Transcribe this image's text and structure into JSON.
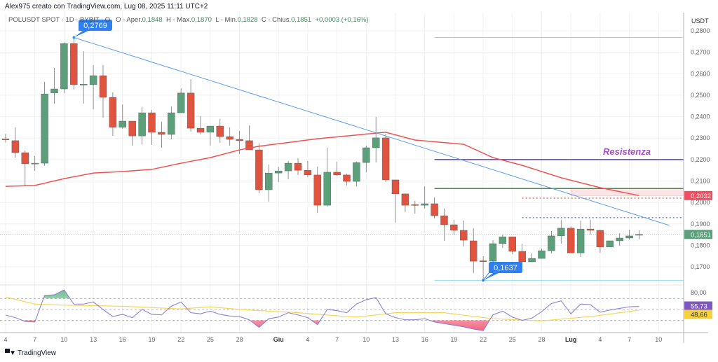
{
  "header": {
    "attribution": "Alex975 creato con TradingView.com, Lug 08, 2025 11:11 UTC+2"
  },
  "legend": {
    "symbol": "POLUSDT SPOT · 1D · BYBIT",
    "open_label": "O - Aper.",
    "open": "0,1848",
    "high_label": "H - Max.",
    "high": "0,1870",
    "low_label": "L - Min.",
    "low": "0,1828",
    "close_label": "C - Chius.",
    "close": "0,1851",
    "change": "+0,0003 (+0,16%)"
  },
  "footer": {
    "brand": "TradingView"
  },
  "colors": {
    "up": "#5b9f7b",
    "down": "#e0533f",
    "ma": "#ef5350",
    "trend": "#5b9cf0",
    "rsi": "#8f7fd6",
    "rsi_ma": "#f5d55a",
    "resistance": "#5c3fc4",
    "support_green": "#3d9140",
    "cyan": "#8fdde6"
  },
  "chart_data": {
    "type": "candlestick",
    "currency": "USDT",
    "ylim": [
      0.159,
      0.283
    ],
    "price_ticks": [
      "0,2800",
      "0,2700",
      "0,2600",
      "0,2500",
      "0,2400",
      "0,2300",
      "0,2200",
      "0,2100",
      "0,2000",
      "0,1900",
      "0,1800",
      "0,1700"
    ],
    "price_tick_values": [
      0.28,
      0.27,
      0.26,
      0.25,
      0.24,
      0.23,
      0.22,
      0.21,
      0.2,
      0.19,
      0.18,
      0.17
    ],
    "x_ticks": [
      {
        "i": 0,
        "label": "4"
      },
      {
        "i": 3,
        "label": "7"
      },
      {
        "i": 6,
        "label": "10"
      },
      {
        "i": 9,
        "label": "13"
      },
      {
        "i": 12,
        "label": "16"
      },
      {
        "i": 15,
        "label": "19"
      },
      {
        "i": 18,
        "label": "22"
      },
      {
        "i": 21,
        "label": "25"
      },
      {
        "i": 24,
        "label": "28"
      },
      {
        "i": 28,
        "label": "Giu",
        "bold": true
      },
      {
        "i": 31,
        "label": "4"
      },
      {
        "i": 34,
        "label": "7"
      },
      {
        "i": 37,
        "label": "10"
      },
      {
        "i": 40,
        "label": "13"
      },
      {
        "i": 43,
        "label": "16"
      },
      {
        "i": 46,
        "label": "19"
      },
      {
        "i": 49,
        "label": "22"
      },
      {
        "i": 52,
        "label": "25"
      },
      {
        "i": 55,
        "label": "28"
      },
      {
        "i": 58,
        "label": "Lug",
        "bold": true
      },
      {
        "i": 61,
        "label": "4"
      },
      {
        "i": 64,
        "label": "7"
      },
      {
        "i": 67,
        "label": "10"
      }
    ],
    "ohlc": [
      [
        0.2296,
        0.232,
        0.228,
        0.2292
      ],
      [
        0.2288,
        0.235,
        0.2209,
        0.2232
      ],
      [
        0.2232,
        0.2242,
        0.2079,
        0.218
      ],
      [
        0.218,
        0.2216,
        0.2147,
        0.2183
      ],
      [
        0.2183,
        0.2562,
        0.217,
        0.2506
      ],
      [
        0.251,
        0.2627,
        0.2461,
        0.2529
      ],
      [
        0.2529,
        0.2745,
        0.251,
        0.2741
      ],
      [
        0.2741,
        0.2769,
        0.2526,
        0.2549
      ],
      [
        0.2549,
        0.2705,
        0.2461,
        0.2551
      ],
      [
        0.2549,
        0.264,
        0.2434,
        0.2591
      ],
      [
        0.2591,
        0.264,
        0.2395,
        0.249
      ],
      [
        0.249,
        0.2513,
        0.231,
        0.235
      ],
      [
        0.235,
        0.2457,
        0.2343,
        0.2379
      ],
      [
        0.2379,
        0.2379,
        0.2265,
        0.231
      ],
      [
        0.231,
        0.2444,
        0.2271,
        0.2418
      ],
      [
        0.2418,
        0.2431,
        0.2268,
        0.2327
      ],
      [
        0.2327,
        0.2376,
        0.2255,
        0.2317
      ],
      [
        0.2317,
        0.2447,
        0.2294,
        0.2418
      ],
      [
        0.2418,
        0.2532,
        0.2418,
        0.251
      ],
      [
        0.251,
        0.2575,
        0.233,
        0.2346
      ],
      [
        0.2346,
        0.2402,
        0.2317,
        0.2327
      ],
      [
        0.2327,
        0.2356,
        0.2265,
        0.2356
      ],
      [
        0.2356,
        0.2389,
        0.2278,
        0.2307
      ],
      [
        0.2307,
        0.235,
        0.2265,
        0.2294
      ],
      [
        0.2294,
        0.2333,
        0.2226,
        0.2288
      ],
      [
        0.2288,
        0.2359,
        0.2245,
        0.2245
      ],
      [
        0.2245,
        0.2275,
        0.2043,
        0.2059
      ],
      [
        0.2059,
        0.2177,
        0.2004,
        0.2137
      ],
      [
        0.2137,
        0.2164,
        0.2095,
        0.2147
      ],
      [
        0.2147,
        0.2193,
        0.2108,
        0.2183
      ],
      [
        0.2183,
        0.2206,
        0.2128,
        0.215
      ],
      [
        0.215,
        0.2193,
        0.2118,
        0.2128
      ],
      [
        0.2128,
        0.2167,
        0.1951,
        0.1987
      ],
      [
        0.1987,
        0.2255,
        0.1981,
        0.2141
      ],
      [
        0.2141,
        0.219,
        0.2124,
        0.2128
      ],
      [
        0.2128,
        0.2134,
        0.2079,
        0.2098
      ],
      [
        0.2098,
        0.219,
        0.2075,
        0.2186
      ],
      [
        0.2186,
        0.2265,
        0.2141,
        0.2255
      ],
      [
        0.2255,
        0.2399,
        0.2186,
        0.2301
      ],
      [
        0.2301,
        0.232,
        0.2095,
        0.2105
      ],
      [
        0.2105,
        0.2105,
        0.1906,
        0.204
      ],
      [
        0.204,
        0.204,
        0.1955,
        0.1987
      ],
      [
        0.199,
        0.2007,
        0.1948,
        0.1987
      ],
      [
        0.1987,
        0.2075,
        0.1971,
        0.1994
      ],
      [
        0.1994,
        0.2023,
        0.1925,
        0.1938
      ],
      [
        0.1938,
        0.1971,
        0.1821,
        0.1896
      ],
      [
        0.1896,
        0.1919,
        0.185,
        0.187
      ],
      [
        0.187,
        0.1915,
        0.1795,
        0.1824
      ],
      [
        0.1821,
        0.188,
        0.1671,
        0.1726
      ],
      [
        0.1728,
        0.1749,
        0.1637,
        0.1726
      ],
      [
        0.1726,
        0.1824,
        0.1723,
        0.1808
      ],
      [
        0.1808,
        0.185,
        0.1788,
        0.184
      ],
      [
        0.184,
        0.184,
        0.1759,
        0.1772
      ],
      [
        0.1772,
        0.1808,
        0.171,
        0.1723
      ],
      [
        0.1723,
        0.1762,
        0.1723,
        0.1739
      ],
      [
        0.1739,
        0.1785,
        0.1739,
        0.1775
      ],
      [
        0.1775,
        0.1867,
        0.1762,
        0.1844
      ],
      [
        0.1844,
        0.1919,
        0.1808,
        0.188
      ],
      [
        0.188,
        0.1889,
        0.1765,
        0.1765
      ],
      [
        0.1765,
        0.1915,
        0.1746,
        0.1876
      ],
      [
        0.1876,
        0.1919,
        0.185,
        0.187
      ],
      [
        0.187,
        0.1873,
        0.1765,
        0.1792
      ],
      [
        0.1792,
        0.1821,
        0.1792,
        0.1821
      ],
      [
        0.1821,
        0.1857,
        0.1798,
        0.1834
      ],
      [
        0.1834,
        0.1873,
        0.1827,
        0.1844
      ],
      [
        0.1848,
        0.187,
        0.1828,
        0.1851
      ]
    ],
    "moving_average": [
      [
        0,
        0.2075
      ],
      [
        3,
        0.2079
      ],
      [
        6,
        0.2111
      ],
      [
        9,
        0.2137
      ],
      [
        12,
        0.2144
      ],
      [
        15,
        0.2154
      ],
      [
        18,
        0.2183
      ],
      [
        21,
        0.2209
      ],
      [
        24,
        0.2245
      ],
      [
        26,
        0.2262
      ],
      [
        32,
        0.2297
      ],
      [
        38,
        0.2323
      ],
      [
        39,
        0.2327
      ],
      [
        42,
        0.2291
      ],
      [
        47,
        0.2271
      ],
      [
        50,
        0.2209
      ],
      [
        53,
        0.2173
      ],
      [
        57,
        0.2115
      ],
      [
        61,
        0.2069
      ],
      [
        65,
        0.2032
      ]
    ],
    "trendline": [
      [
        7,
        0.2769
      ],
      [
        68.1,
        0.1893
      ]
    ],
    "levels": [
      {
        "name": "high-level",
        "price": 0.2769,
        "from": 44,
        "style": "cyan"
      },
      {
        "name": "low-level",
        "price": 0.1637,
        "from": 44,
        "style": "cyan"
      },
      {
        "name": "resistance-level",
        "price": 0.22,
        "from": 44,
        "style": "purple"
      },
      {
        "name": "green-level",
        "price": 0.2065,
        "from": 44,
        "style": "green"
      },
      {
        "name": "red-dotted-level",
        "price": 0.202,
        "from": 53,
        "style": "reddot"
      },
      {
        "name": "blue-dotted-level",
        "price": 0.1929,
        "from": 53,
        "style": "bluedot"
      }
    ],
    "zone": {
      "from": 58,
      "top": 0.2065,
      "bottom": 0.2032
    },
    "annotations": {
      "resistance_label": "Resistenza",
      "high_callout": "0,2769",
      "low_callout": "0,1637",
      "high_idx": 7,
      "high_price": 0.2769,
      "low_idx": 49,
      "low_price": 0.1637
    },
    "last_price_label": "0,1851",
    "last_price": 0.1851,
    "ma_price_label": "0,2032",
    "ma_price": 0.2032,
    "rsi": {
      "ticks": [
        "80,00"
      ],
      "levels": [
        70,
        50,
        30
      ],
      "value_label": "55,73",
      "ma_label": "48,66",
      "values": [
        39.7,
        35,
        28,
        27,
        76,
        77,
        86,
        60,
        60,
        64,
        50,
        37,
        41,
        35,
        50,
        41,
        40,
        56,
        64,
        44,
        42,
        47,
        41,
        38,
        37,
        31,
        17,
        33,
        36,
        44,
        40,
        35,
        22,
        50,
        48,
        44,
        60,
        68,
        72,
        42,
        35,
        31,
        31,
        33,
        27,
        24,
        21,
        18,
        14,
        11,
        40,
        47,
        36,
        30,
        34,
        46,
        61,
        66,
        42,
        60,
        59,
        45,
        49,
        52,
        55,
        55.73
      ],
      "ma": [
        [
          0,
          73
        ],
        [
          3,
          60
        ],
        [
          6,
          58
        ],
        [
          12,
          56
        ],
        [
          18,
          51
        ],
        [
          21,
          55
        ],
        [
          24,
          50
        ],
        [
          30,
          44
        ],
        [
          35,
          37
        ],
        [
          36,
          36
        ],
        [
          40,
          44
        ],
        [
          45,
          44
        ],
        [
          50,
          33
        ],
        [
          55,
          29
        ],
        [
          60,
          37
        ],
        [
          65,
          48.66
        ]
      ]
    }
  }
}
